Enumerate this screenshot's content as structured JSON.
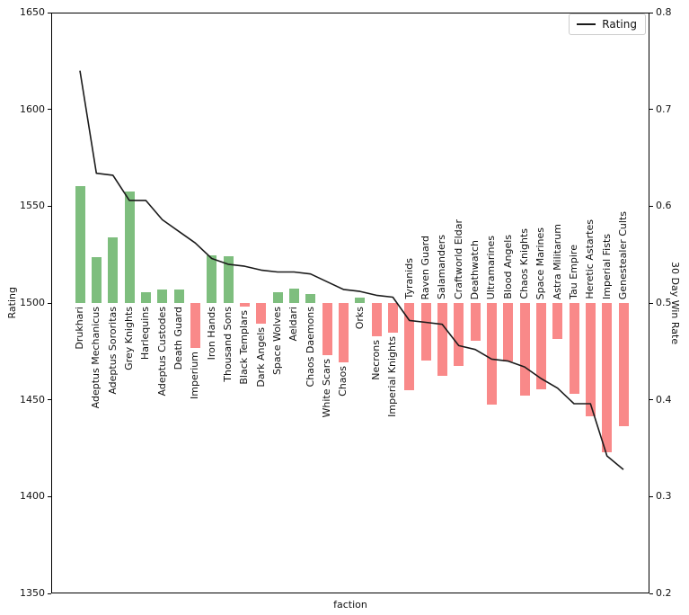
{
  "figure": {
    "xlabel": "faction",
    "ylabel_left": "Rating",
    "ylabel_right": "30 Day Win Rate",
    "legend_label": "Rating"
  },
  "chart_data": {
    "type": "bar",
    "title": "",
    "xlabel": "faction",
    "ylabel_left": "Rating",
    "ylabel_right": "30 Day Win Rate",
    "ylim_left": [
      1350,
      1650
    ],
    "ylim_right": [
      0.2,
      0.8
    ],
    "y_left_ticks": [
      "1650",
      "1600",
      "1550",
      "1500",
      "1450",
      "1400",
      "1350"
    ],
    "y_right_ticks": [
      "0.8",
      "0.7",
      "0.6",
      "0.5",
      "0.4",
      "0.3",
      "0.2"
    ],
    "legend": {
      "entries": [
        "Rating"
      ],
      "position": "upper right"
    },
    "grid": false,
    "baseline_win_rate": 0.5,
    "colors": {
      "bar_above": "#7ebe7e",
      "bar_below": "#f98989",
      "line": "#1a1a1a"
    },
    "categories": [
      "Drukhari",
      "Adeptus Mechanicus",
      "Adeptus Sororitas",
      "Grey Knights",
      "Harlequins",
      "Adeptus Custodes",
      "Death Guard",
      "Imperium",
      "Iron Hands",
      "Thousand Sons",
      "Black Templars",
      "Dark Angels",
      "Space Wolves",
      "Aeldari",
      "Chaos Daemons",
      "White Scars",
      "Chaos",
      "Orks",
      "Necrons",
      "Imperial Knights",
      "Tyranids",
      "Raven Guard",
      "Salamanders",
      "Craftworld Eldar",
      "Deathwatch",
      "Ultramarines",
      "Blood Angels",
      "Chaos Knights",
      "Space Marines",
      "Astra Militarum",
      "Tau Empire",
      "Heretic Astartes",
      "Imperial Fists",
      "Genestealer Cults"
    ],
    "series": [
      {
        "name": "Rating",
        "type": "line",
        "axis": "left",
        "values": [
          1620,
          1567,
          1566,
          1553,
          1553,
          1543,
          1537,
          1531,
          1523,
          1520,
          1519,
          1517,
          1516,
          1516,
          1515,
          1511,
          1507,
          1506,
          1504,
          1503,
          1491,
          1490,
          1489,
          1478,
          1476,
          1471,
          1470,
          1467,
          1461,
          1456,
          1448,
          1448,
          1421,
          1414
        ]
      },
      {
        "name": "30 Day Win Rate",
        "type": "bar",
        "axis": "right",
        "values": [
          0.621,
          0.547,
          0.568,
          0.615,
          0.511,
          0.514,
          0.514,
          0.454,
          0.549,
          0.548,
          0.496,
          0.479,
          0.511,
          0.515,
          0.509,
          0.446,
          0.439,
          0.506,
          0.466,
          0.469,
          0.41,
          0.441,
          0.425,
          0.435,
          0.461,
          0.395,
          0.44,
          0.404,
          0.411,
          0.463,
          0.406,
          0.383,
          0.346,
          0.373
        ]
      }
    ]
  }
}
